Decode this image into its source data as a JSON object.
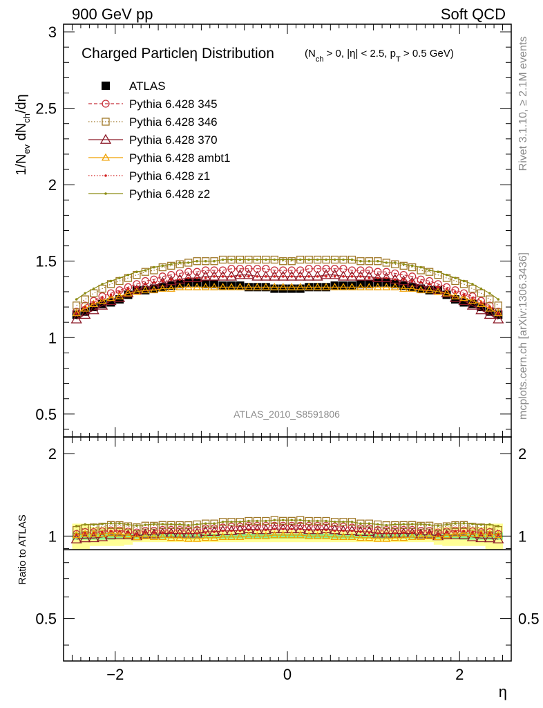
{
  "header": {
    "left": "900 GeV pp",
    "right": "Soft QCD"
  },
  "side_text": {
    "rivet": "Rivet 3.1.10, ≥ 2.1M events",
    "mcplots": "mcplots.cern.ch [arXiv:1306.3436]"
  },
  "chart_data": [
    {
      "type": "scatter",
      "title": "Charged Particle η Distribution",
      "title_main": "Charged Particle",
      "title_eta": "η",
      "title_rest": " Distribution",
      "title_cuts": {
        "p1": "(N",
        "sub1": "ch",
        "p2": " > 0, |η| < 2.5, p",
        "sub2": "T",
        "p3": " > 0.5 GeV)"
      },
      "ylabel": {
        "a": "1/N",
        "sub_a": "ev",
        "b": " dN",
        "sub_b": "ch",
        "c": "/dη"
      },
      "xlabel": "η",
      "watermark": "ATLAS_2010_S8591806",
      "xlim": [
        -2.6,
        2.6
      ],
      "ylim": [
        0.35,
        3.05
      ],
      "yticks": [
        0.5,
        1,
        1.5,
        2,
        2.5,
        3
      ],
      "ytick_labels": [
        "0.5",
        "1",
        "1.5",
        "2",
        "2.5",
        "3"
      ],
      "x": [
        -2.45,
        -2.35,
        -2.25,
        -2.15,
        -2.05,
        -1.95,
        -1.85,
        -1.75,
        -1.65,
        -1.55,
        -1.45,
        -1.35,
        -1.25,
        -1.15,
        -1.05,
        -0.95,
        -0.85,
        -0.75,
        -0.65,
        -0.55,
        -0.45,
        -0.35,
        -0.25,
        -0.15,
        -0.05,
        0.05,
        0.15,
        0.25,
        0.35,
        0.45,
        0.55,
        0.65,
        0.75,
        0.85,
        0.95,
        1.05,
        1.15,
        1.25,
        1.35,
        1.45,
        1.55,
        1.65,
        1.75,
        1.85,
        1.95,
        2.05,
        2.15,
        2.25,
        2.35,
        2.45
      ],
      "series": [
        {
          "name": "ATLAS",
          "color": "#000000",
          "marker": "filled-square",
          "line": "none",
          "values": [
            1.15,
            1.17,
            1.2,
            1.22,
            1.23,
            1.25,
            1.28,
            1.31,
            1.31,
            1.32,
            1.33,
            1.34,
            1.35,
            1.36,
            1.36,
            1.35,
            1.35,
            1.34,
            1.34,
            1.34,
            1.33,
            1.33,
            1.33,
            1.32,
            1.32,
            1.32,
            1.32,
            1.33,
            1.33,
            1.33,
            1.34,
            1.34,
            1.34,
            1.35,
            1.35,
            1.36,
            1.36,
            1.35,
            1.34,
            1.33,
            1.32,
            1.31,
            1.31,
            1.28,
            1.25,
            1.23,
            1.22,
            1.2,
            1.17,
            1.15
          ]
        },
        {
          "name": "Pythia 6.428 345",
          "color": "#c8323c",
          "marker": "open-circle",
          "line": "dashed",
          "values": [
            1.17,
            1.21,
            1.24,
            1.27,
            1.29,
            1.31,
            1.33,
            1.35,
            1.37,
            1.38,
            1.4,
            1.41,
            1.42,
            1.43,
            1.43,
            1.44,
            1.44,
            1.44,
            1.45,
            1.45,
            1.45,
            1.45,
            1.45,
            1.44,
            1.44,
            1.44,
            1.44,
            1.45,
            1.45,
            1.45,
            1.45,
            1.45,
            1.44,
            1.44,
            1.44,
            1.43,
            1.43,
            1.42,
            1.41,
            1.4,
            1.38,
            1.37,
            1.35,
            1.33,
            1.31,
            1.29,
            1.27,
            1.24,
            1.21,
            1.17
          ]
        },
        {
          "name": "Pythia 6.428 346",
          "color": "#a07828",
          "marker": "open-square",
          "line": "dotted",
          "values": [
            1.21,
            1.25,
            1.29,
            1.32,
            1.35,
            1.37,
            1.39,
            1.41,
            1.43,
            1.44,
            1.46,
            1.47,
            1.48,
            1.49,
            1.5,
            1.5,
            1.5,
            1.51,
            1.51,
            1.51,
            1.51,
            1.51,
            1.51,
            1.51,
            1.5,
            1.5,
            1.51,
            1.51,
            1.51,
            1.51,
            1.51,
            1.51,
            1.51,
            1.5,
            1.5,
            1.5,
            1.49,
            1.48,
            1.47,
            1.46,
            1.44,
            1.43,
            1.41,
            1.39,
            1.37,
            1.35,
            1.32,
            1.29,
            1.25,
            1.21
          ]
        },
        {
          "name": "Pythia 6.428 370",
          "color": "#8c1a28",
          "marker": "open-triangle",
          "line": "solid",
          "values": [
            1.12,
            1.15,
            1.18,
            1.21,
            1.24,
            1.26,
            1.29,
            1.31,
            1.33,
            1.34,
            1.36,
            1.37,
            1.38,
            1.39,
            1.39,
            1.4,
            1.4,
            1.4,
            1.4,
            1.41,
            1.41,
            1.4,
            1.4,
            1.4,
            1.4,
            1.4,
            1.4,
            1.4,
            1.4,
            1.41,
            1.41,
            1.4,
            1.4,
            1.4,
            1.4,
            1.39,
            1.39,
            1.38,
            1.37,
            1.36,
            1.34,
            1.33,
            1.31,
            1.29,
            1.26,
            1.24,
            1.21,
            1.18,
            1.15,
            1.12
          ]
        },
        {
          "name": "Pythia 6.428 ambt1",
          "color": "#f0a000",
          "marker": "open-triangle-small",
          "line": "solid",
          "values": [
            1.16,
            1.19,
            1.22,
            1.24,
            1.26,
            1.27,
            1.29,
            1.3,
            1.31,
            1.31,
            1.32,
            1.32,
            1.33,
            1.33,
            1.33,
            1.33,
            1.33,
            1.33,
            1.33,
            1.33,
            1.33,
            1.33,
            1.33,
            1.33,
            1.33,
            1.33,
            1.33,
            1.33,
            1.33,
            1.33,
            1.33,
            1.33,
            1.33,
            1.33,
            1.33,
            1.33,
            1.33,
            1.33,
            1.32,
            1.32,
            1.31,
            1.31,
            1.3,
            1.29,
            1.27,
            1.26,
            1.24,
            1.22,
            1.19,
            1.16
          ]
        },
        {
          "name": "Pythia 6.428 z1",
          "color": "#d22020",
          "marker": "dot",
          "line": "dotted",
          "values": [
            1.16,
            1.2,
            1.23,
            1.26,
            1.28,
            1.3,
            1.32,
            1.33,
            1.35,
            1.36,
            1.37,
            1.38,
            1.38,
            1.39,
            1.39,
            1.39,
            1.4,
            1.4,
            1.4,
            1.4,
            1.4,
            1.4,
            1.4,
            1.4,
            1.4,
            1.4,
            1.4,
            1.4,
            1.4,
            1.4,
            1.4,
            1.4,
            1.4,
            1.4,
            1.39,
            1.39,
            1.39,
            1.38,
            1.38,
            1.37,
            1.36,
            1.35,
            1.33,
            1.32,
            1.3,
            1.28,
            1.26,
            1.23,
            1.2,
            1.16
          ]
        },
        {
          "name": "Pythia 6.428 z2",
          "color": "#8c8c14",
          "marker": "dot",
          "line": "solid",
          "values": [
            1.25,
            1.29,
            1.32,
            1.35,
            1.37,
            1.39,
            1.41,
            1.43,
            1.44,
            1.46,
            1.47,
            1.48,
            1.49,
            1.49,
            1.5,
            1.5,
            1.5,
            1.51,
            1.51,
            1.51,
            1.51,
            1.51,
            1.51,
            1.51,
            1.51,
            1.51,
            1.51,
            1.51,
            1.51,
            1.51,
            1.51,
            1.51,
            1.51,
            1.5,
            1.5,
            1.5,
            1.49,
            1.49,
            1.48,
            1.47,
            1.46,
            1.44,
            1.43,
            1.41,
            1.39,
            1.37,
            1.35,
            1.32,
            1.29,
            1.25
          ]
        }
      ]
    },
    {
      "type": "scatter",
      "title": "",
      "ylabel": "Ratio to ATLAS",
      "xlabel": "η",
      "xlim": [
        -2.6,
        2.6
      ],
      "ylim": [
        0.35,
        2.3
      ],
      "yticks": [
        0.5,
        1,
        2
      ],
      "ytick_labels": [
        "0.5",
        "1",
        "2"
      ],
      "xticks": [
        -2,
        0,
        2
      ],
      "xtick_labels": [
        "−2",
        "0",
        "2"
      ],
      "reference_line": 1,
      "bands": {
        "stat_color": "#8cf08c",
        "total_color": "#ffff96",
        "stat_halfwidth": [
          0.03,
          0.03,
          0.03,
          0.03,
          0.03,
          0.02,
          0.02,
          0.02,
          0.02,
          0.02,
          0.02,
          0.02,
          0.02,
          0.02,
          0.02,
          0.02,
          0.02,
          0.02,
          0.02,
          0.02,
          0.02,
          0.02,
          0.02,
          0.02,
          0.02,
          0.02,
          0.02,
          0.02,
          0.02,
          0.02,
          0.02,
          0.02,
          0.02,
          0.02,
          0.02,
          0.02,
          0.02,
          0.02,
          0.02,
          0.02,
          0.02,
          0.02,
          0.02,
          0.02,
          0.02,
          0.03,
          0.03,
          0.03,
          0.03,
          0.03
        ],
        "total_halfwidth": [
          0.11,
          0.11,
          0.08,
          0.08,
          0.08,
          0.08,
          0.07,
          0.05,
          0.05,
          0.05,
          0.05,
          0.05,
          0.05,
          0.05,
          0.05,
          0.05,
          0.05,
          0.05,
          0.05,
          0.05,
          0.05,
          0.05,
          0.05,
          0.05,
          0.05,
          0.05,
          0.05,
          0.05,
          0.05,
          0.05,
          0.05,
          0.05,
          0.05,
          0.05,
          0.05,
          0.05,
          0.05,
          0.05,
          0.05,
          0.05,
          0.05,
          0.05,
          0.07,
          0.08,
          0.08,
          0.08,
          0.08,
          0.08,
          0.11,
          0.11
        ]
      }
    }
  ]
}
